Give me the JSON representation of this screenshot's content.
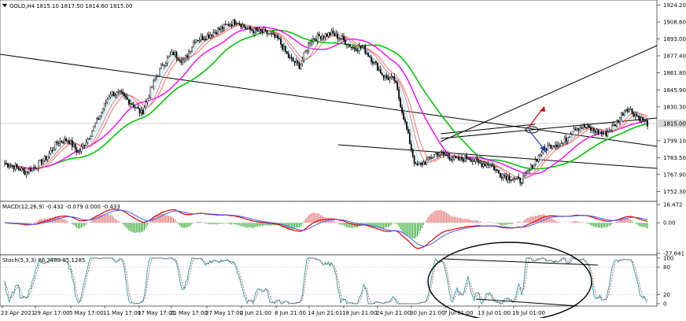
{
  "chart_data": [
    {
      "type": "candlestick",
      "header": {
        "symbol_label": "GOLD,H4",
        "ohlc_text": "1815.10 1817.50 1814.60 1815.00"
      },
      "price_label": "1815.00",
      "current_price": 1815.0,
      "y_ticks": [
        "1924.20",
        "1908.60",
        "1893.00",
        "1877.40",
        "1861.80",
        "1845.90",
        "1830.30",
        "1815.00",
        "1799.10",
        "1783.50",
        "1767.90",
        "1752.30"
      ],
      "y_tick_values": [
        1924.2,
        1908.6,
        1893.0,
        1877.4,
        1861.8,
        1845.9,
        1830.3,
        1815.0,
        1799.1,
        1783.5,
        1767.9,
        1752.3
      ],
      "ylim": [
        1746.0,
        1926.0
      ],
      "x_ticks": [
        "23 Apr 2021",
        "29 Apr 17:00",
        "5 May 17:00",
        "11 May 17:00",
        "17 May 17:01",
        "21 May 17:00",
        "27 May 17:00",
        "2 Jun 21:00",
        "8 Jun 21:00",
        "14 Jun 21:01",
        "18 Jun 21:00",
        "24 Jun 21:00",
        "30 Jun 21:00",
        "7 Jul 01:00",
        "13 Jul 01:00",
        "19 Jul 01:00"
      ],
      "close_anchors": [
        1778,
        1775,
        1770,
        1776,
        1784,
        1798,
        1800,
        1788,
        1803,
        1822,
        1843,
        1842,
        1834,
        1824,
        1850,
        1870,
        1880,
        1872,
        1892,
        1895,
        1900,
        1905,
        1910,
        1902,
        1900,
        1898,
        1892,
        1875,
        1868,
        1892,
        1896,
        1898,
        1893,
        1885,
        1885,
        1872,
        1858,
        1855,
        1815,
        1775,
        1780,
        1788,
        1785,
        1781,
        1784,
        1778,
        1778,
        1768,
        1765,
        1762,
        1775,
        1790,
        1796,
        1797,
        1811,
        1812,
        1808,
        1805,
        1815,
        1830,
        1822,
        1815
      ],
      "ma_colors": [
        "#00c800",
        "#ff00ff",
        "#f06464",
        "#80e0ff"
      ],
      "arrows": {
        "up_color": "#e00000",
        "down_color": "#2040c0"
      }
    },
    {
      "type": "line",
      "header": {
        "label": "MACD(12,26,9) -0.432 -0.079 0.000 -0.433"
      },
      "y_ticks": [
        "16.472",
        "0.00",
        "-27.641"
      ],
      "ylim": [
        -27.641,
        16.472
      ],
      "histogram_colors": {
        "positive": "#e06060",
        "negative": "#20a020"
      },
      "line_colors": {
        "macd": "#e00000",
        "signal": "#4060ff"
      }
    },
    {
      "type": "line",
      "header": {
        "label": "Stoch(5,3,3) 86.2460 85.1285"
      },
      "y_ticks": [
        "100",
        "80",
        "20",
        "0"
      ],
      "ylim": [
        0,
        100
      ],
      "line_colors": {
        "main": "#20a0a0",
        "signal": "#c04040"
      }
    }
  ]
}
